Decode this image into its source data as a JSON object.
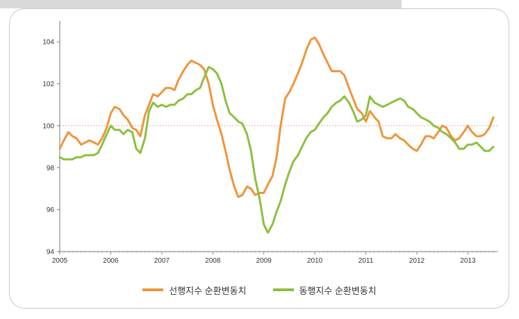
{
  "chart_data": {
    "type": "line",
    "title": "",
    "xlabel": "",
    "ylabel": "",
    "xlim": [
      2005.0,
      2013.58
    ],
    "ylim": [
      94,
      105
    ],
    "y_ticks": [
      94,
      96,
      98,
      100,
      102,
      104
    ],
    "x_ticks": [
      "2005",
      "2006",
      "2007",
      "2008",
      "2009",
      "2010",
      "2011",
      "2012",
      "2013"
    ],
    "reference_line": 100,
    "grid": false,
    "legend_position": "bottom",
    "series": [
      {
        "name": "선행지수 순환변동치",
        "color": "#f0943a",
        "points": [
          [
            2005.0,
            98.9
          ],
          [
            2005.08,
            99.3
          ],
          [
            2005.17,
            99.7
          ],
          [
            2005.25,
            99.5
          ],
          [
            2005.33,
            99.4
          ],
          [
            2005.42,
            99.1
          ],
          [
            2005.5,
            99.2
          ],
          [
            2005.58,
            99.3
          ],
          [
            2005.67,
            99.2
          ],
          [
            2005.75,
            99.1
          ],
          [
            2005.83,
            99.4
          ],
          [
            2005.92,
            99.9
          ],
          [
            2006.0,
            100.6
          ],
          [
            2006.08,
            100.9
          ],
          [
            2006.17,
            100.8
          ],
          [
            2006.25,
            100.5
          ],
          [
            2006.33,
            100.3
          ],
          [
            2006.42,
            99.9
          ],
          [
            2006.5,
            99.8
          ],
          [
            2006.58,
            99.5
          ],
          [
            2006.67,
            100.5
          ],
          [
            2006.75,
            101.0
          ],
          [
            2006.83,
            101.5
          ],
          [
            2006.92,
            101.4
          ],
          [
            2007.0,
            101.6
          ],
          [
            2007.08,
            101.8
          ],
          [
            2007.17,
            101.8
          ],
          [
            2007.25,
            101.7
          ],
          [
            2007.33,
            102.2
          ],
          [
            2007.42,
            102.6
          ],
          [
            2007.5,
            102.9
          ],
          [
            2007.58,
            103.1
          ],
          [
            2007.67,
            103.0
          ],
          [
            2007.75,
            102.9
          ],
          [
            2007.83,
            102.7
          ],
          [
            2007.92,
            102.0
          ],
          [
            2008.0,
            101.0
          ],
          [
            2008.08,
            100.3
          ],
          [
            2008.17,
            99.6
          ],
          [
            2008.25,
            98.8
          ],
          [
            2008.33,
            97.9
          ],
          [
            2008.42,
            97.1
          ],
          [
            2008.5,
            96.6
          ],
          [
            2008.58,
            96.7
          ],
          [
            2008.67,
            97.1
          ],
          [
            2008.75,
            97.0
          ],
          [
            2008.83,
            96.7
          ],
          [
            2008.92,
            96.8
          ],
          [
            2009.0,
            96.8
          ],
          [
            2009.08,
            97.2
          ],
          [
            2009.17,
            97.6
          ],
          [
            2009.25,
            98.5
          ],
          [
            2009.33,
            100.0
          ],
          [
            2009.42,
            101.3
          ],
          [
            2009.5,
            101.6
          ],
          [
            2009.58,
            102.0
          ],
          [
            2009.67,
            102.5
          ],
          [
            2009.75,
            103.0
          ],
          [
            2009.83,
            103.6
          ],
          [
            2009.92,
            104.1
          ],
          [
            2010.0,
            104.2
          ],
          [
            2010.08,
            103.9
          ],
          [
            2010.17,
            103.4
          ],
          [
            2010.25,
            103.0
          ],
          [
            2010.33,
            102.6
          ],
          [
            2010.42,
            102.6
          ],
          [
            2010.5,
            102.6
          ],
          [
            2010.58,
            102.4
          ],
          [
            2010.67,
            101.8
          ],
          [
            2010.75,
            101.3
          ],
          [
            2010.83,
            100.8
          ],
          [
            2010.92,
            100.6
          ],
          [
            2011.0,
            100.2
          ],
          [
            2011.08,
            100.7
          ],
          [
            2011.17,
            100.4
          ],
          [
            2011.25,
            100.2
          ],
          [
            2011.33,
            99.5
          ],
          [
            2011.42,
            99.4
          ],
          [
            2011.5,
            99.4
          ],
          [
            2011.58,
            99.6
          ],
          [
            2011.67,
            99.4
          ],
          [
            2011.75,
            99.3
          ],
          [
            2011.83,
            99.1
          ],
          [
            2011.92,
            98.9
          ],
          [
            2012.0,
            98.8
          ],
          [
            2012.08,
            99.1
          ],
          [
            2012.17,
            99.5
          ],
          [
            2012.25,
            99.5
          ],
          [
            2012.33,
            99.4
          ],
          [
            2012.42,
            99.7
          ],
          [
            2012.5,
            100.0
          ],
          [
            2012.58,
            99.9
          ],
          [
            2012.67,
            99.5
          ],
          [
            2012.75,
            99.3
          ],
          [
            2012.83,
            99.4
          ],
          [
            2012.92,
            99.7
          ],
          [
            2013.0,
            100.0
          ],
          [
            2013.08,
            99.7
          ],
          [
            2013.17,
            99.5
          ],
          [
            2013.25,
            99.5
          ],
          [
            2013.33,
            99.6
          ],
          [
            2013.42,
            99.9
          ],
          [
            2013.5,
            100.4
          ]
        ]
      },
      {
        "name": "동행지수 순환변동치",
        "color": "#8cbf3f",
        "points": [
          [
            2005.0,
            98.5
          ],
          [
            2005.08,
            98.4
          ],
          [
            2005.17,
            98.4
          ],
          [
            2005.25,
            98.4
          ],
          [
            2005.33,
            98.5
          ],
          [
            2005.42,
            98.5
          ],
          [
            2005.5,
            98.6
          ],
          [
            2005.58,
            98.6
          ],
          [
            2005.67,
            98.6
          ],
          [
            2005.75,
            98.7
          ],
          [
            2005.83,
            99.1
          ],
          [
            2005.92,
            99.6
          ],
          [
            2006.0,
            100.0
          ],
          [
            2006.08,
            99.8
          ],
          [
            2006.17,
            99.8
          ],
          [
            2006.25,
            99.6
          ],
          [
            2006.33,
            99.8
          ],
          [
            2006.42,
            99.7
          ],
          [
            2006.5,
            98.9
          ],
          [
            2006.58,
            98.7
          ],
          [
            2006.67,
            99.4
          ],
          [
            2006.75,
            100.7
          ],
          [
            2006.83,
            101.1
          ],
          [
            2006.92,
            100.9
          ],
          [
            2007.0,
            101.0
          ],
          [
            2007.08,
            100.9
          ],
          [
            2007.17,
            101.0
          ],
          [
            2007.25,
            101.0
          ],
          [
            2007.33,
            101.2
          ],
          [
            2007.42,
            101.3
          ],
          [
            2007.5,
            101.5
          ],
          [
            2007.58,
            101.5
          ],
          [
            2007.67,
            101.7
          ],
          [
            2007.75,
            101.8
          ],
          [
            2007.83,
            102.3
          ],
          [
            2007.92,
            102.8
          ],
          [
            2008.0,
            102.7
          ],
          [
            2008.08,
            102.5
          ],
          [
            2008.17,
            102.0
          ],
          [
            2008.25,
            101.2
          ],
          [
            2008.33,
            100.6
          ],
          [
            2008.42,
            100.4
          ],
          [
            2008.5,
            100.2
          ],
          [
            2008.58,
            100.1
          ],
          [
            2008.67,
            99.6
          ],
          [
            2008.75,
            98.8
          ],
          [
            2008.83,
            97.5
          ],
          [
            2008.92,
            96.5
          ],
          [
            2009.0,
            95.3
          ],
          [
            2009.08,
            94.9
          ],
          [
            2009.17,
            95.3
          ],
          [
            2009.25,
            95.9
          ],
          [
            2009.33,
            96.4
          ],
          [
            2009.42,
            97.2
          ],
          [
            2009.5,
            97.8
          ],
          [
            2009.58,
            98.3
          ],
          [
            2009.67,
            98.6
          ],
          [
            2009.75,
            99.0
          ],
          [
            2009.83,
            99.4
          ],
          [
            2009.92,
            99.7
          ],
          [
            2010.0,
            99.8
          ],
          [
            2010.08,
            100.1
          ],
          [
            2010.17,
            100.4
          ],
          [
            2010.25,
            100.6
          ],
          [
            2010.33,
            100.9
          ],
          [
            2010.42,
            101.1
          ],
          [
            2010.5,
            101.2
          ],
          [
            2010.58,
            101.4
          ],
          [
            2010.67,
            101.1
          ],
          [
            2010.75,
            100.7
          ],
          [
            2010.83,
            100.2
          ],
          [
            2010.92,
            100.3
          ],
          [
            2011.0,
            100.5
          ],
          [
            2011.08,
            101.4
          ],
          [
            2011.17,
            101.1
          ],
          [
            2011.25,
            101.0
          ],
          [
            2011.33,
            100.9
          ],
          [
            2011.42,
            101.0
          ],
          [
            2011.5,
            101.1
          ],
          [
            2011.58,
            101.2
          ],
          [
            2011.67,
            101.3
          ],
          [
            2011.75,
            101.2
          ],
          [
            2011.83,
            100.9
          ],
          [
            2011.92,
            100.8
          ],
          [
            2012.0,
            100.6
          ],
          [
            2012.08,
            100.4
          ],
          [
            2012.17,
            100.3
          ],
          [
            2012.25,
            100.2
          ],
          [
            2012.33,
            100.0
          ],
          [
            2012.42,
            99.9
          ],
          [
            2012.5,
            99.7
          ],
          [
            2012.58,
            99.6
          ],
          [
            2012.67,
            99.4
          ],
          [
            2012.75,
            99.2
          ],
          [
            2012.83,
            98.9
          ],
          [
            2012.92,
            98.9
          ],
          [
            2013.0,
            99.1
          ],
          [
            2013.08,
            99.1
          ],
          [
            2013.17,
            99.2
          ],
          [
            2013.25,
            99.0
          ],
          [
            2013.33,
            98.8
          ],
          [
            2013.42,
            98.8
          ],
          [
            2013.5,
            99.0
          ]
        ]
      }
    ]
  }
}
